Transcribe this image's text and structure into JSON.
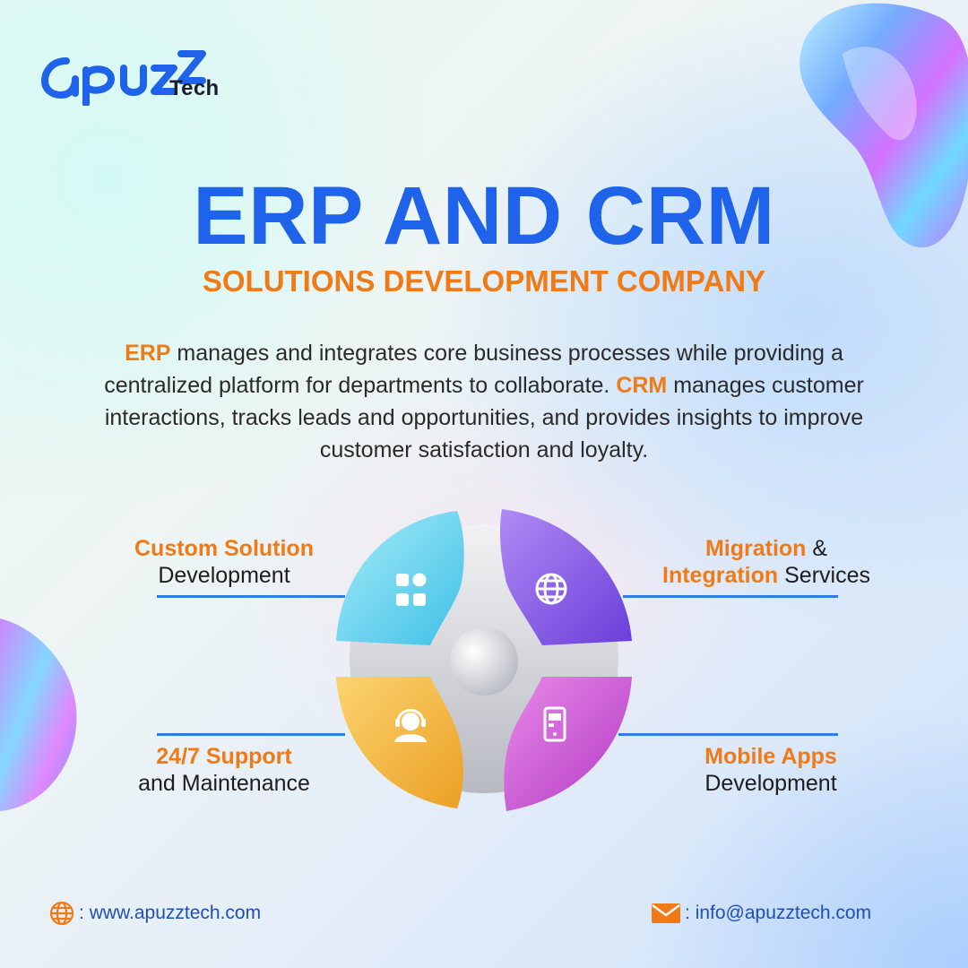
{
  "brand": {
    "logo_text": "apuzz",
    "logo_suffix": "Tech"
  },
  "title": "ERP AND CRM",
  "subtitle": "SOLUTIONS DEVELOPMENT COMPANY",
  "description": {
    "erp_term": "ERP",
    "part1": " manages and integrates core business processes while providing a centralized platform for departments to collaborate. ",
    "crm_term": "CRM",
    "part2": " manages customer interactions, tracks leads and opportunities, and provides insights to improve customer satisfaction and loyalty."
  },
  "services": [
    {
      "highlight": "Custom Solution",
      "rest": "Development",
      "icon": "grid-apps-icon",
      "color": "#6fd6ee"
    },
    {
      "highlight1": "Migration",
      "mid": " & ",
      "highlight2": "Integration",
      "rest": " Services",
      "icon": "globe-icon",
      "color": "#8c5ae8"
    },
    {
      "highlight": "24/7 Support",
      "rest": "and Maintenance",
      "icon": "headset-support-icon",
      "color": "#f4b844"
    },
    {
      "highlight": "Mobile Apps",
      "rest": "Development",
      "icon": "mobile-app-icon",
      "color": "#d05ad8"
    }
  ],
  "contact": {
    "website_sep": ":",
    "website": "www.apuzztech.com",
    "email_sep": ":",
    "email": "info@apuzztech.com"
  },
  "colors": {
    "primary_blue": "#1e63e9",
    "accent_orange": "#f07b16",
    "text_dark": "#1d1d1d"
  }
}
